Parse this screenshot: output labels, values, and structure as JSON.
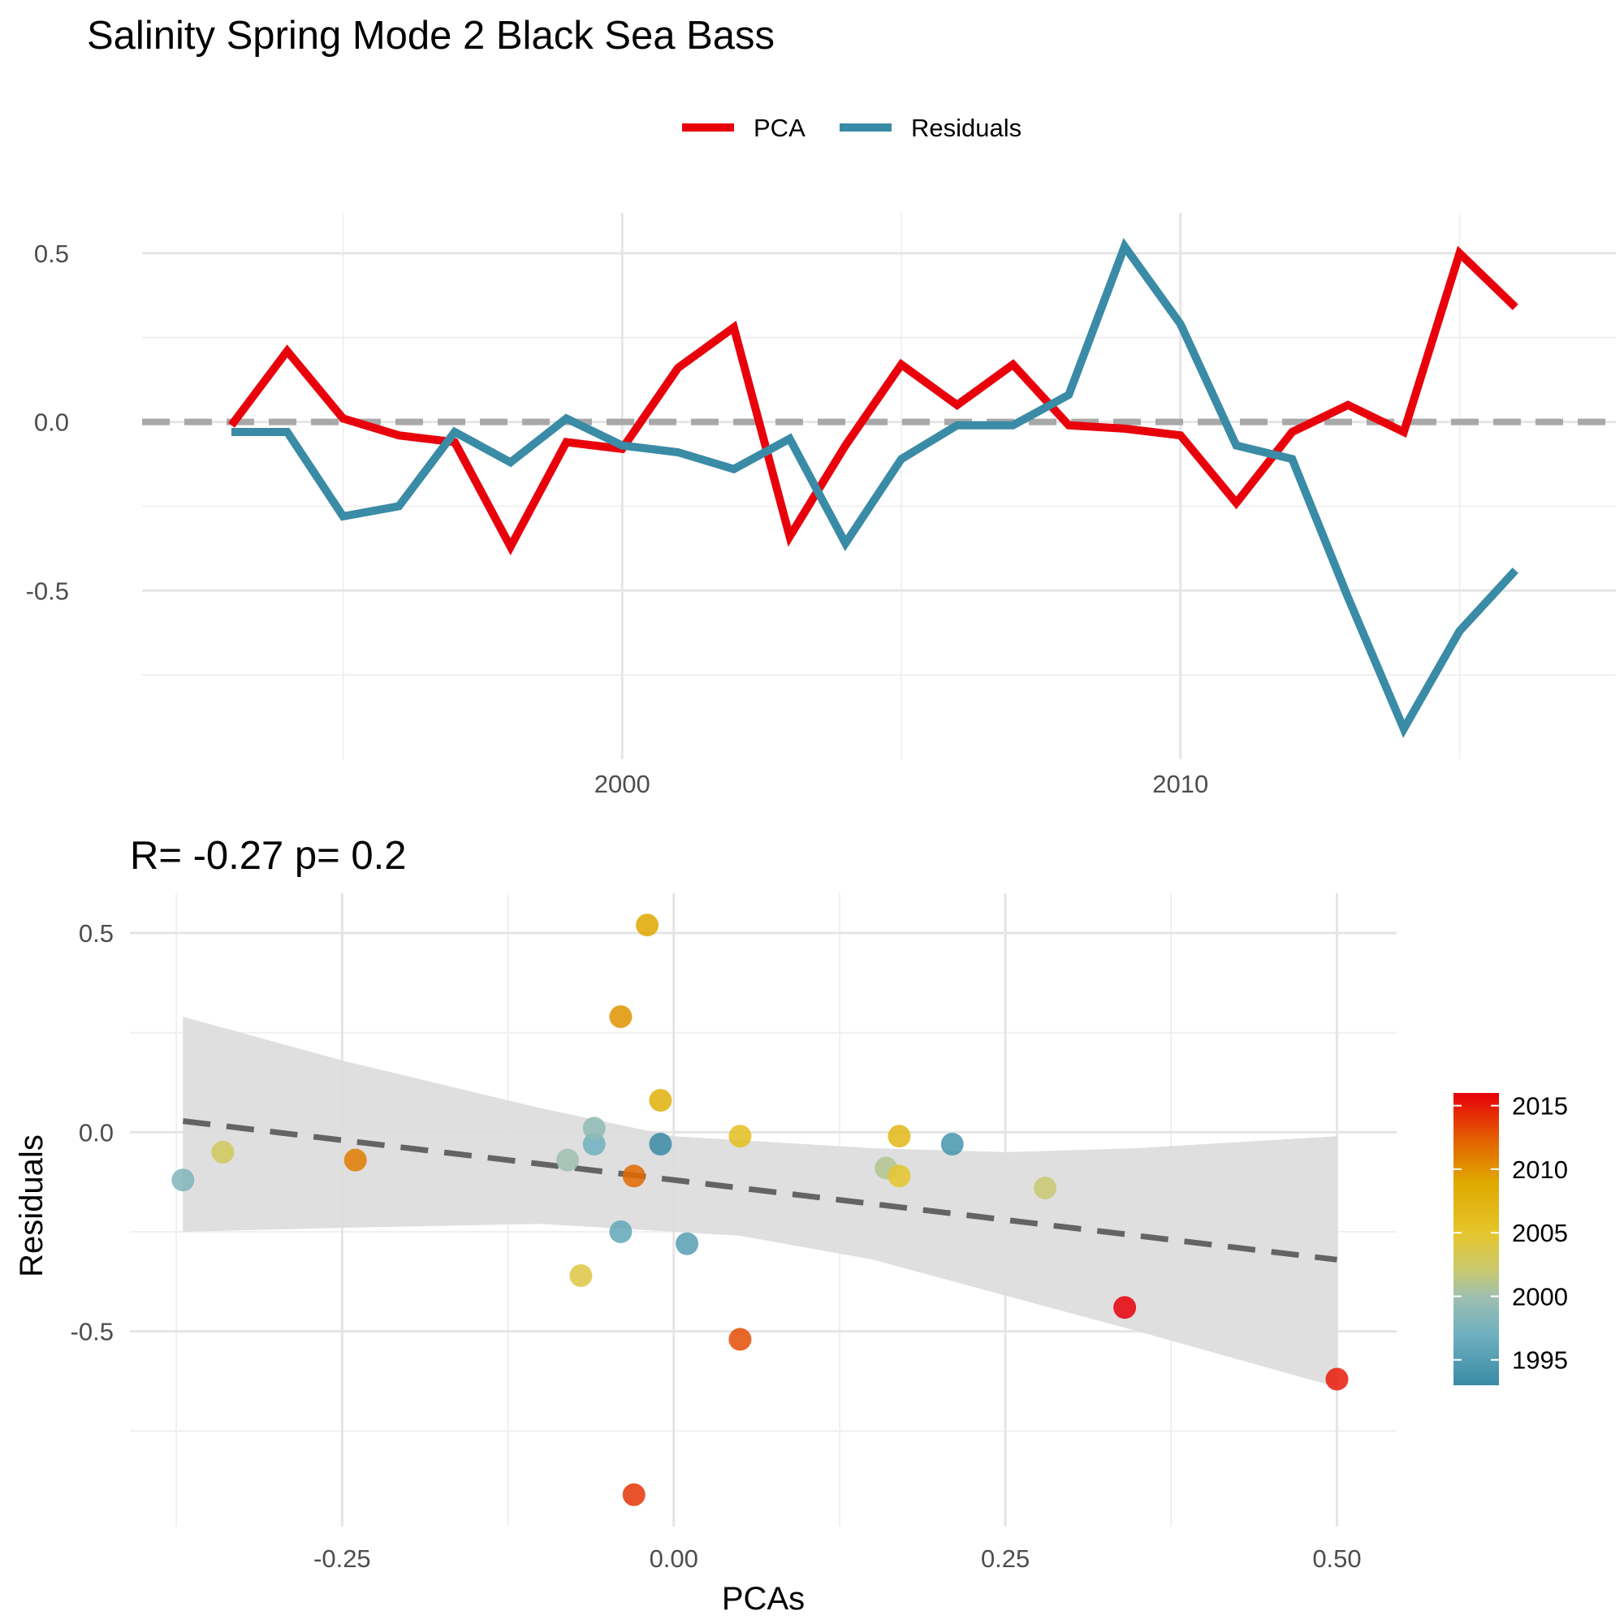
{
  "title": "Salinity Spring Mode 2 Black Sea Bass",
  "colors": {
    "pca": "#E8000B",
    "residuals": "#3A8BA6",
    "zero_line": "#A8A8A8",
    "fit_line": "#646464",
    "ribbon": "#DCDCDC"
  },
  "chart_data": [
    {
      "type": "line",
      "title": "",
      "xlabel": "",
      "ylabel": "",
      "legend_position": "top",
      "grid": true,
      "xlim": [
        1991.4,
        2017.8
      ],
      "ylim": [
        -1.0,
        0.62
      ],
      "x_ticks": [
        2000,
        2010
      ],
      "x_tick_labels": [
        "2000",
        "2010"
      ],
      "y_ticks": [
        0.5,
        0.0,
        -0.5
      ],
      "y_tick_labels": [
        "0.5",
        "0.0",
        "-0.5"
      ],
      "x": [
        1993,
        1994,
        1995,
        1996,
        1997,
        1998,
        1999,
        2000,
        2001,
        2002,
        2003,
        2004,
        2005,
        2006,
        2007,
        2008,
        2009,
        2010,
        2011,
        2012,
        2013,
        2014,
        2015,
        2016
      ],
      "series": [
        {
          "name": "PCA",
          "values": [
            -0.01,
            0.21,
            0.01,
            -0.04,
            -0.06,
            -0.37,
            -0.06,
            -0.08,
            0.16,
            0.28,
            -0.34,
            -0.07,
            0.17,
            0.05,
            0.17,
            -0.01,
            -0.02,
            -0.04,
            -0.24,
            -0.03,
            0.05,
            -0.03,
            0.5,
            0.34
          ]
        },
        {
          "name": "Residuals",
          "values": [
            -0.03,
            -0.03,
            -0.28,
            -0.25,
            -0.03,
            -0.12,
            0.01,
            -0.07,
            -0.09,
            -0.14,
            -0.05,
            -0.36,
            -0.11,
            -0.01,
            -0.01,
            0.08,
            0.52,
            0.29,
            -0.07,
            -0.11,
            -0.52,
            -0.91,
            -0.62,
            -0.44
          ]
        }
      ]
    },
    {
      "type": "scatter",
      "title": "R= -0.27  p= 0.2",
      "xlabel": "PCAs",
      "ylabel": "Residuals",
      "grid": true,
      "xlim": [
        -0.41,
        0.545
      ],
      "ylim": [
        -0.99,
        0.6
      ],
      "x_ticks": [
        -0.25,
        0.0,
        0.25,
        0.5
      ],
      "x_tick_labels": [
        "-0.25",
        "0.00",
        "0.25",
        "0.50"
      ],
      "y_ticks": [
        0.5,
        0.0,
        -0.5
      ],
      "y_tick_labels": [
        "0.5",
        "0.0",
        "-0.5"
      ],
      "colorbar": {
        "position": "right",
        "range": [
          1993,
          2016
        ],
        "ticks": [
          2015,
          2010,
          2005,
          2000,
          1995
        ],
        "tick_labels": [
          "2015",
          "2010",
          "2005",
          "2000",
          "1995"
        ],
        "stops": [
          {
            "year": 1993,
            "color": "#3A8BA6"
          },
          {
            "year": 1997,
            "color": "#6FB0BF"
          },
          {
            "year": 2000,
            "color": "#9FC0B0"
          },
          {
            "year": 2002,
            "color": "#C9C972"
          },
          {
            "year": 2005,
            "color": "#E5C52B"
          },
          {
            "year": 2009,
            "color": "#E0A800"
          },
          {
            "year": 2012,
            "color": "#E26800"
          },
          {
            "year": 2016,
            "color": "#E8000B"
          }
        ]
      },
      "points": [
        {
          "pca": -0.01,
          "residual": -0.03,
          "year": 1993
        },
        {
          "pca": 0.21,
          "residual": -0.03,
          "year": 1994
        },
        {
          "pca": 0.01,
          "residual": -0.28,
          "year": 1995
        },
        {
          "pca": -0.04,
          "residual": -0.25,
          "year": 1996
        },
        {
          "pca": -0.06,
          "residual": -0.03,
          "year": 1997
        },
        {
          "pca": -0.37,
          "residual": -0.12,
          "year": 1998
        },
        {
          "pca": -0.06,
          "residual": 0.01,
          "year": 1999
        },
        {
          "pca": -0.08,
          "residual": -0.07,
          "year": 2000
        },
        {
          "pca": 0.16,
          "residual": -0.09,
          "year": 2001
        },
        {
          "pca": 0.28,
          "residual": -0.14,
          "year": 2002
        },
        {
          "pca": -0.34,
          "residual": -0.05,
          "year": 2003
        },
        {
          "pca": -0.07,
          "residual": -0.36,
          "year": 2004
        },
        {
          "pca": 0.17,
          "residual": -0.11,
          "year": 2005
        },
        {
          "pca": 0.05,
          "residual": -0.01,
          "year": 2006
        },
        {
          "pca": 0.17,
          "residual": -0.01,
          "year": 2007
        },
        {
          "pca": -0.01,
          "residual": 0.08,
          "year": 2008
        },
        {
          "pca": -0.02,
          "residual": 0.52,
          "year": 2009
        },
        {
          "pca": -0.04,
          "residual": 0.29,
          "year": 2010
        },
        {
          "pca": -0.24,
          "residual": -0.07,
          "year": 2011
        },
        {
          "pca": -0.03,
          "residual": -0.11,
          "year": 2012
        },
        {
          "pca": 0.05,
          "residual": -0.52,
          "year": 2013
        },
        {
          "pca": -0.03,
          "residual": -0.91,
          "year": 2014
        },
        {
          "pca": 0.5,
          "residual": -0.62,
          "year": 2015
        },
        {
          "pca": 0.34,
          "residual": -0.44,
          "year": 2016
        }
      ],
      "fit": {
        "x_range": [
          -0.37,
          0.5
        ],
        "intercept": -0.12,
        "slope": -0.4,
        "ribbon": [
          {
            "x": -0.37,
            "lower": -0.25,
            "upper": 0.29
          },
          {
            "x": -0.25,
            "lower": -0.24,
            "upper": 0.18
          },
          {
            "x": -0.1,
            "lower": -0.23,
            "upper": 0.06
          },
          {
            "x": 0.0,
            "lower": -0.25,
            "upper": -0.01
          },
          {
            "x": 0.05,
            "lower": -0.26,
            "upper": -0.02
          },
          {
            "x": 0.15,
            "lower": -0.32,
            "upper": -0.04
          },
          {
            "x": 0.25,
            "lower": -0.41,
            "upper": -0.05
          },
          {
            "x": 0.35,
            "lower": -0.5,
            "upper": -0.04
          },
          {
            "x": 0.5,
            "lower": -0.64,
            "upper": -0.01
          }
        ]
      }
    }
  ]
}
